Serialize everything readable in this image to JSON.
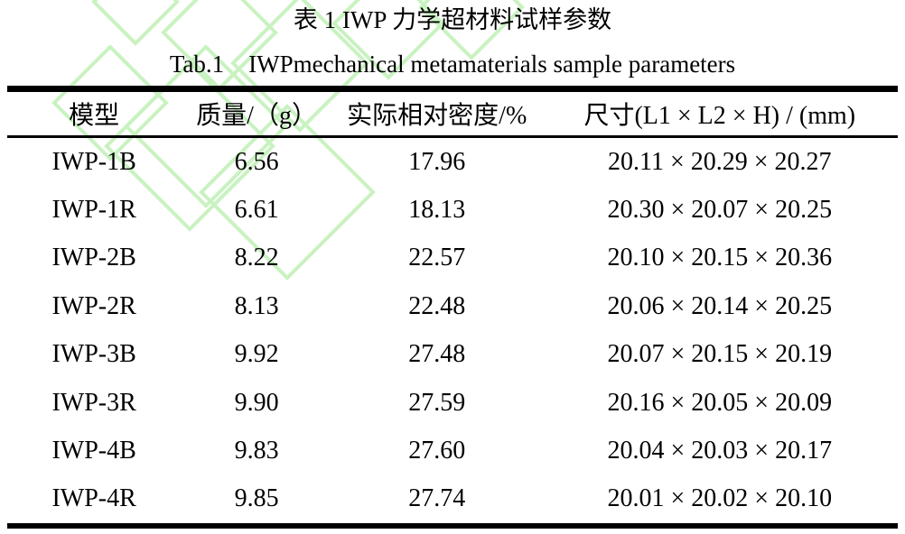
{
  "captions": {
    "zh": "表 1 IWP 力学超材料试样参数",
    "en": "Tab.1 IWPmechanical metamaterials sample parameters"
  },
  "colors": {
    "background": "#ffffff",
    "text": "#000000",
    "rule": "#000000",
    "watermark_green": "#c9f2c1"
  },
  "table": {
    "columns": [
      "模型",
      "质量/（g）",
      "实际相对密度/%",
      "尺寸(L1 × L2 × H) / (mm)"
    ],
    "column_keys": [
      "model",
      "mass",
      "density",
      "size"
    ],
    "rows": [
      {
        "model": "IWP-1B",
        "mass": "6.56",
        "density": "17.96",
        "size": "20.11 × 20.29 × 20.27"
      },
      {
        "model": "IWP-1R",
        "mass": "6.61",
        "density": "18.13",
        "size": "20.30 × 20.07 × 20.25"
      },
      {
        "model": "IWP-2B",
        "mass": "8.22",
        "density": "22.57",
        "size": "20.10 × 20.15 × 20.36"
      },
      {
        "model": "IWP-2R",
        "mass": "8.13",
        "density": "22.48",
        "size": "20.06 × 20.14 × 20.25"
      },
      {
        "model": "IWP-3B",
        "mass": "9.92",
        "density": "27.48",
        "size": "20.07 × 20.15 × 20.19"
      },
      {
        "model": "IWP-3R",
        "mass": "9.90",
        "density": "27.59",
        "size": "20.16 × 20.05 × 20.09"
      },
      {
        "model": "IWP-4B",
        "mass": "9.83",
        "density": "27.60",
        "size": "20.04 × 20.03 × 20.17"
      },
      {
        "model": "IWP-4R",
        "mass": "9.85",
        "density": "27.74",
        "size": "20.01 × 20.02 × 20.10"
      }
    ]
  }
}
